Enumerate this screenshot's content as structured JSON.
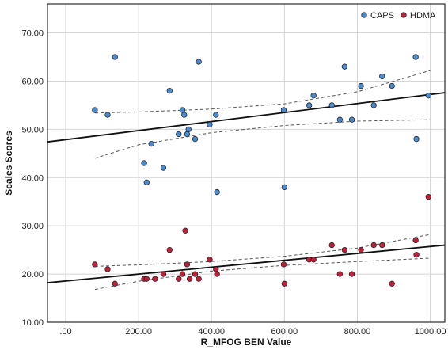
{
  "chart_data": {
    "type": "scatter",
    "title": "",
    "xlabel": "R_MFOG BEN Value",
    "ylabel": "Scales Scores",
    "xlim": [
      -50,
      1040
    ],
    "ylim": [
      10,
      76
    ],
    "x_ticks": [
      {
        "value": 0,
        "label": ".00"
      },
      {
        "value": 200,
        "label": "200.00"
      },
      {
        "value": 400,
        "label": "400.00"
      },
      {
        "value": 600,
        "label": "600.00"
      },
      {
        "value": 800,
        "label": "800.00"
      },
      {
        "value": 1000,
        "label": "1000.00"
      }
    ],
    "y_ticks": [
      {
        "value": 10,
        "label": "10.00"
      },
      {
        "value": 20,
        "label": "20.00"
      },
      {
        "value": 30,
        "label": "30.00"
      },
      {
        "value": 40,
        "label": "40.00"
      },
      {
        "value": 50,
        "label": "50.00"
      },
      {
        "value": 60,
        "label": "60.00"
      },
      {
        "value": 70,
        "label": "70.00"
      }
    ],
    "grid": true,
    "legend_position": "top-right",
    "series": [
      {
        "name": "CAPS",
        "color": "#4a8ad1",
        "points": [
          {
            "x": 80,
            "y": 54
          },
          {
            "x": 115,
            "y": 53
          },
          {
            "x": 135,
            "y": 65
          },
          {
            "x": 215,
            "y": 43
          },
          {
            "x": 222,
            "y": 39
          },
          {
            "x": 235,
            "y": 47
          },
          {
            "x": 268,
            "y": 42
          },
          {
            "x": 285,
            "y": 58
          },
          {
            "x": 310,
            "y": 49
          },
          {
            "x": 320,
            "y": 54
          },
          {
            "x": 325,
            "y": 53
          },
          {
            "x": 333,
            "y": 49
          },
          {
            "x": 337,
            "y": 50
          },
          {
            "x": 355,
            "y": 48
          },
          {
            "x": 365,
            "y": 64
          },
          {
            "x": 395,
            "y": 51
          },
          {
            "x": 412,
            "y": 53
          },
          {
            "x": 415,
            "y": 37
          },
          {
            "x": 598,
            "y": 54
          },
          {
            "x": 600,
            "y": 38
          },
          {
            "x": 668,
            "y": 55
          },
          {
            "x": 680,
            "y": 57
          },
          {
            "x": 730,
            "y": 55
          },
          {
            "x": 752,
            "y": 52
          },
          {
            "x": 765,
            "y": 63
          },
          {
            "x": 785,
            "y": 52
          },
          {
            "x": 810,
            "y": 59
          },
          {
            "x": 845,
            "y": 55
          },
          {
            "x": 868,
            "y": 61
          },
          {
            "x": 895,
            "y": 59
          },
          {
            "x": 960,
            "y": 65
          },
          {
            "x": 962,
            "y": 48
          },
          {
            "x": 995,
            "y": 57
          }
        ],
        "fit": {
          "y_at_xmin": 47.4,
          "y_at_xmax": 57.6
        },
        "ci_upper": [
          {
            "x": 80,
            "y": 53.4
          },
          {
            "x": 200,
            "y": 53.6
          },
          {
            "x": 400,
            "y": 54.2
          },
          {
            "x": 600,
            "y": 55.3
          },
          {
            "x": 800,
            "y": 57.8
          },
          {
            "x": 1000,
            "y": 62.2
          }
        ],
        "ci_lower": [
          {
            "x": 80,
            "y": 44.0
          },
          {
            "x": 200,
            "y": 46.8
          },
          {
            "x": 400,
            "y": 49.3
          },
          {
            "x": 600,
            "y": 50.8
          },
          {
            "x": 800,
            "y": 51.7
          },
          {
            "x": 1000,
            "y": 52.0
          }
        ]
      },
      {
        "name": "HDMA",
        "color": "#c0213a",
        "points": [
          {
            "x": 80,
            "y": 22
          },
          {
            "x": 115,
            "y": 21
          },
          {
            "x": 135,
            "y": 18
          },
          {
            "x": 215,
            "y": 19
          },
          {
            "x": 222,
            "y": 19
          },
          {
            "x": 245,
            "y": 19
          },
          {
            "x": 268,
            "y": 20
          },
          {
            "x": 285,
            "y": 25
          },
          {
            "x": 310,
            "y": 19
          },
          {
            "x": 320,
            "y": 20
          },
          {
            "x": 328,
            "y": 29
          },
          {
            "x": 333,
            "y": 22
          },
          {
            "x": 340,
            "y": 19
          },
          {
            "x": 355,
            "y": 20
          },
          {
            "x": 365,
            "y": 19
          },
          {
            "x": 395,
            "y": 23
          },
          {
            "x": 412,
            "y": 21
          },
          {
            "x": 415,
            "y": 20
          },
          {
            "x": 598,
            "y": 22
          },
          {
            "x": 600,
            "y": 18
          },
          {
            "x": 668,
            "y": 23
          },
          {
            "x": 680,
            "y": 23
          },
          {
            "x": 730,
            "y": 26
          },
          {
            "x": 752,
            "y": 20
          },
          {
            "x": 765,
            "y": 25
          },
          {
            "x": 785,
            "y": 20
          },
          {
            "x": 810,
            "y": 25
          },
          {
            "x": 845,
            "y": 26
          },
          {
            "x": 868,
            "y": 26
          },
          {
            "x": 895,
            "y": 18
          },
          {
            "x": 960,
            "y": 27
          },
          {
            "x": 962,
            "y": 24
          },
          {
            "x": 995,
            "y": 36
          }
        ],
        "fit": {
          "y_at_xmin": 18.2,
          "y_at_xmax": 26.0
        },
        "ci_upper": [
          {
            "x": 80,
            "y": 21.6
          },
          {
            "x": 200,
            "y": 21.9
          },
          {
            "x": 400,
            "y": 22.6
          },
          {
            "x": 600,
            "y": 23.7
          },
          {
            "x": 800,
            "y": 25.4
          },
          {
            "x": 1000,
            "y": 28.2
          }
        ],
        "ci_lower": [
          {
            "x": 80,
            "y": 16.8
          },
          {
            "x": 200,
            "y": 18.5
          },
          {
            "x": 400,
            "y": 20.6
          },
          {
            "x": 600,
            "y": 21.8
          },
          {
            "x": 800,
            "y": 22.6
          },
          {
            "x": 1000,
            "y": 23.3
          }
        ]
      }
    ]
  }
}
